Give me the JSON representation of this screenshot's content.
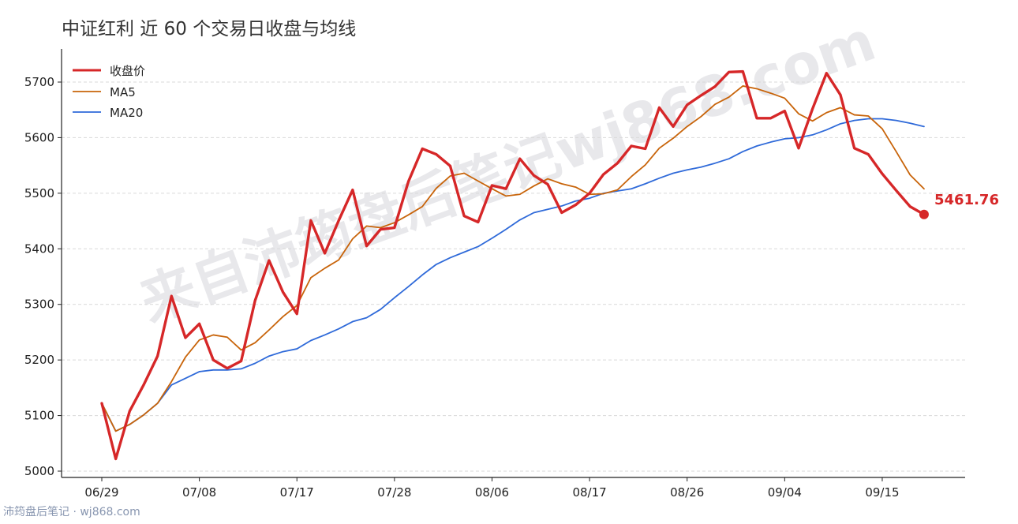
{
  "chart_data": {
    "type": "line",
    "title": "中证红利 近 60 个交易日收盘与均线",
    "xlabel": "",
    "ylabel": "",
    "ylim": [
      4990,
      5760
    ],
    "yticks": [
      5000,
      5100,
      5200,
      5300,
      5400,
      5500,
      5600,
      5700
    ],
    "xticks": [
      {
        "index": 0,
        "label": "06/29"
      },
      {
        "index": 7,
        "label": "07/08"
      },
      {
        "index": 14,
        "label": "07/17"
      },
      {
        "index": 21,
        "label": "07/28"
      },
      {
        "index": 28,
        "label": "08/06"
      },
      {
        "index": 35,
        "label": "08/17"
      },
      {
        "index": 42,
        "label": "08/26"
      },
      {
        "index": 49,
        "label": "09/04"
      },
      {
        "index": 56,
        "label": "09/15"
      }
    ],
    "grid": "horizontal",
    "legend_position": "top-left",
    "series": [
      {
        "name": "收盘价",
        "color": "#d62728",
        "values": [
          5122,
          5022,
          5108,
          5155,
          5207,
          5315,
          5240,
          5265,
          5200,
          5185,
          5198,
          5307,
          5379,
          5322,
          5283,
          5451,
          5392,
          5451,
          5506,
          5405,
          5435,
          5438,
          5521,
          5580,
          5570,
          5549,
          5459,
          5448,
          5514,
          5508,
          5562,
          5532,
          5516,
          5465,
          5479,
          5500,
          5534,
          5554,
          5585,
          5580,
          5654,
          5620,
          5659,
          5676,
          5692,
          5718,
          5719,
          5635,
          5635,
          5648,
          5581,
          5652,
          5716,
          5677,
          5581,
          5570,
          5535,
          5505,
          5476,
          5461.76
        ]
      },
      {
        "name": "MA5",
        "color": "#c8640a",
        "values": [
          5122,
          5072,
          5084,
          5101,
          5122,
          5161,
          5205,
          5236,
          5245,
          5241,
          5218,
          5231,
          5254,
          5278,
          5298,
          5348,
          5365,
          5380,
          5418,
          5441,
          5438,
          5447,
          5461,
          5476,
          5509,
          5531,
          5536,
          5522,
          5508,
          5495,
          5498,
          5513,
          5526,
          5517,
          5511,
          5498,
          5499,
          5506,
          5530,
          5551,
          5581,
          5599,
          5620,
          5638,
          5660,
          5673,
          5693,
          5688,
          5680,
          5671,
          5643,
          5630,
          5645,
          5654,
          5641,
          5639,
          5616,
          5575,
          5533,
          5508
        ]
      },
      {
        "name": "MA20",
        "color": "#2f6ad9",
        "values": [
          5122,
          5072,
          5084,
          5101,
          5122,
          5155,
          5167,
          5179,
          5182,
          5182,
          5184,
          5194,
          5207,
          5215,
          5220,
          5235,
          5245,
          5256,
          5269,
          5276,
          5291,
          5312,
          5332,
          5353,
          5372,
          5384,
          5394,
          5404,
          5419,
          5435,
          5452,
          5465,
          5471,
          5477,
          5486,
          5491,
          5500,
          5504,
          5508,
          5517,
          5527,
          5536,
          5542,
          5547,
          5554,
          5562,
          5575,
          5585,
          5592,
          5598,
          5600,
          5605,
          5614,
          5625,
          5631,
          5634,
          5634,
          5631,
          5626,
          5620
        ]
      }
    ],
    "last_value_label": "5461.76",
    "watermark": "来自沛筠盘后笔记wj868.com"
  },
  "footer": {
    "credit": "沛筠盘后笔记 · wj868.com"
  },
  "colors": {
    "axis": "#222222",
    "grid": "#d9d9d9",
    "title": "#333333",
    "footer": "#8896b0",
    "watermark": "#e6e6e9"
  }
}
